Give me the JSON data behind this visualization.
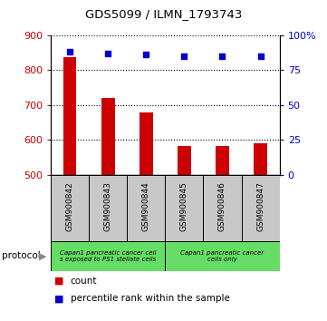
{
  "title": "GDS5099 / ILMN_1793743",
  "samples": [
    "GSM900842",
    "GSM900843",
    "GSM900844",
    "GSM900845",
    "GSM900846",
    "GSM900847"
  ],
  "counts": [
    838,
    720,
    678,
    582,
    582,
    592
  ],
  "percentile_ranks": [
    88,
    87,
    86,
    85,
    85,
    85
  ],
  "ylim_left": [
    500,
    900
  ],
  "ylim_right": [
    0,
    100
  ],
  "yticks_left": [
    500,
    600,
    700,
    800,
    900
  ],
  "yticks_right": [
    0,
    25,
    50,
    75,
    100
  ],
  "ytick_labels_right": [
    "0",
    "25",
    "50",
    "75",
    "100%"
  ],
  "bar_color": "#cc0000",
  "scatter_color": "#0000cc",
  "grid_color": "#000000",
  "group1_label": "Capan1 pancreatic cancer cell\ns exposed to PS1 stellate cells",
  "group2_label": "Capan1 pancreatic cancer\ncells only",
  "group1_color": "#66dd66",
  "group2_color": "#66dd66",
  "legend_items": [
    {
      "color": "#cc0000",
      "label": "count"
    },
    {
      "color": "#0000cc",
      "label": "percentile rank within the sample"
    }
  ],
  "protocol_label": "protocol",
  "background_color": "#ffffff",
  "plot_bg_color": "#d8d8d8",
  "tick_label_color_left": "#cc0000",
  "tick_label_color_right": "#0000cc",
  "sample_bg_color": "#c8c8c8"
}
